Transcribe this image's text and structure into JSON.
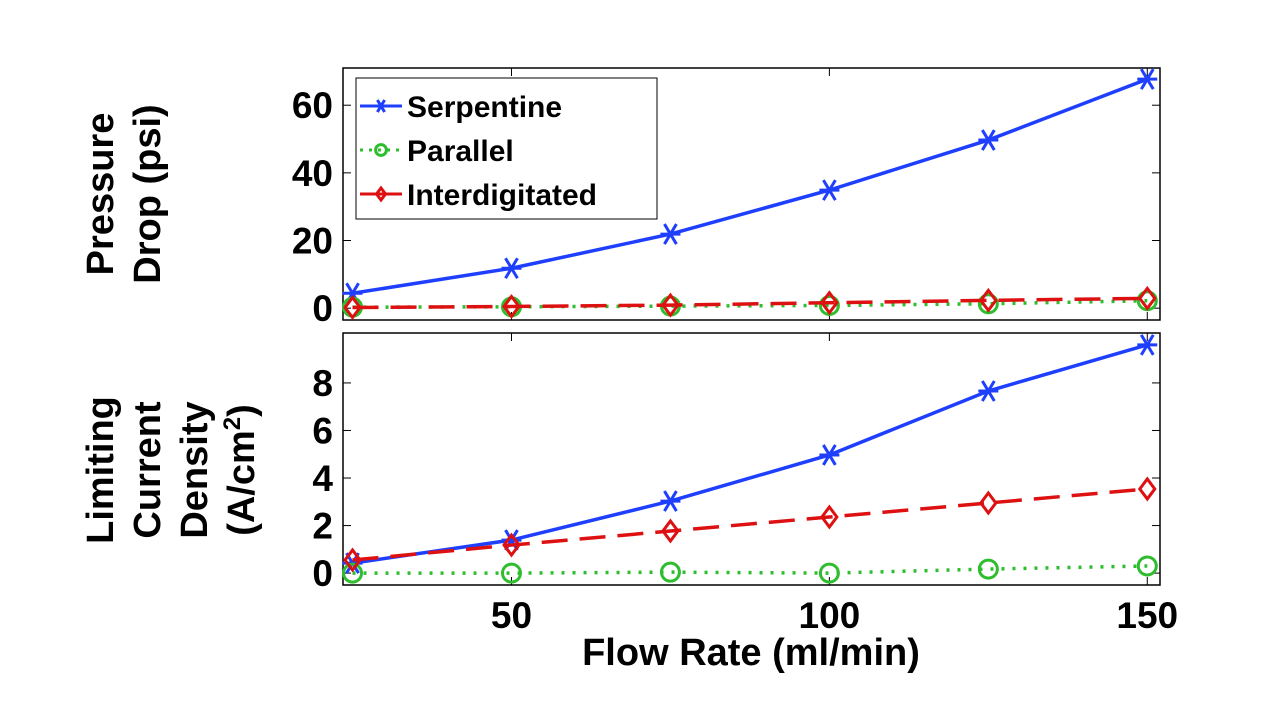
{
  "chart_data": [
    {
      "type": "line",
      "ylabel_lines": [
        "Pressure",
        "Drop (psi)"
      ],
      "xlabel": "",
      "x": [
        25,
        50,
        75,
        100,
        125,
        150
      ],
      "xlim": [
        23.5,
        152
      ],
      "ylim": [
        -3.5,
        71
      ],
      "xticks": [
        50,
        100,
        150
      ],
      "show_xtick_labels": false,
      "yticks": [
        0,
        20,
        40,
        60
      ],
      "grid": false,
      "legend": "top-left",
      "series": [
        {
          "name": "Serpentine",
          "color": "#1f3fff",
          "dash": "solid",
          "marker": "asterisk",
          "values": [
            4.4,
            11.8,
            21.9,
            34.9,
            49.7,
            67.7
          ]
        },
        {
          "name": "Parallel",
          "color": "#2dbd2d",
          "dash": "dotted",
          "marker": "circle",
          "values": [
            0.3,
            0.4,
            0.6,
            0.8,
            1.3,
            2.2
          ]
        },
        {
          "name": "Interdigitated",
          "color": "#dd1111",
          "dash": "dashed",
          "marker": "diamond",
          "values": [
            0.2,
            0.5,
            0.9,
            1.6,
            2.3,
            2.9
          ]
        }
      ]
    },
    {
      "type": "line",
      "ylabel_lines": [
        "Limiting",
        "Current",
        "Density",
        "(A/cm",
        "2",
        ")"
      ],
      "xlabel": "Flow Rate (ml/min)",
      "x": [
        25,
        50,
        75,
        100,
        125,
        150
      ],
      "xlim": [
        23.5,
        152
      ],
      "ylim": [
        -0.5,
        10.1
      ],
      "xticks": [
        50,
        100,
        150
      ],
      "show_xtick_labels": true,
      "yticks": [
        0,
        2,
        4,
        6,
        8
      ],
      "grid": false,
      "series": [
        {
          "name": "Serpentine",
          "color": "#1f3fff",
          "dash": "solid",
          "marker": "asterisk",
          "values": [
            0.42,
            1.39,
            3.03,
            4.97,
            7.66,
            9.6
          ]
        },
        {
          "name": "Parallel",
          "color": "#2dbd2d",
          "dash": "dotted",
          "marker": "circle",
          "values": [
            0.0,
            0.0,
            0.04,
            0.0,
            0.17,
            0.3
          ]
        },
        {
          "name": "Interdigitated",
          "color": "#dd1111",
          "dash": "dashed",
          "marker": "diamond",
          "values": [
            0.55,
            1.18,
            1.77,
            2.36,
            2.95,
            3.54
          ]
        }
      ]
    }
  ]
}
